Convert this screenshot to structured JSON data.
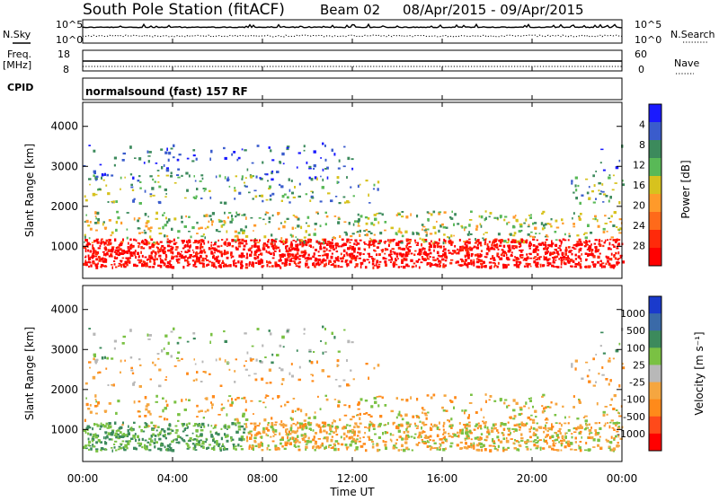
{
  "header": {
    "station": "South Pole Station (fitACF)",
    "beam": "Beam 02",
    "dates": "08/Apr/2015 - 09/Apr/2015"
  },
  "side_labels": {
    "nsky": "N.Sky",
    "nsearch": "N.Search",
    "freq": "Freq.",
    "mhz": "[MHz]",
    "nave": "Nave",
    "cpid": "CPID"
  },
  "cpid_text": "normalsound (fast) 157 RF",
  "chart_data": [
    {
      "type": "line",
      "name": "noise",
      "series": [
        {
          "name": "N.Sky",
          "style": "solid",
          "value_text": "10^5"
        },
        {
          "name": "N.Search",
          "style": "dotted"
        }
      ],
      "y_tick_labels_left": [
        "10^5",
        "10^0"
      ],
      "y_tick_labels_right": [
        "10^5",
        "10^0"
      ]
    },
    {
      "type": "line",
      "name": "frequency",
      "series": [
        {
          "name": "Freq.",
          "style": "solid"
        },
        {
          "name": "Nave",
          "style": "dotted"
        }
      ],
      "y_tick_labels_left": [
        "18",
        "8"
      ],
      "y_tick_labels_right": [
        "60",
        "0"
      ]
    },
    {
      "type": "heatmap",
      "name": "power",
      "ylabel": "Slant Range [km]",
      "y_ticks": [
        1000,
        2000,
        3000,
        4000
      ],
      "ylim": [
        200,
        4600
      ],
      "colorbar": {
        "label": "Power [dB]",
        "ticks": [
          "4",
          "8",
          "12",
          "16",
          "20",
          "24",
          "28"
        ],
        "colors": [
          "#1a1aff",
          "#3a5ccc",
          "#3c8a5c",
          "#59b957",
          "#d7c21e",
          "#ff9a2a",
          "#ff6a1a",
          "#ff2a0a",
          "#ff0000"
        ]
      }
    },
    {
      "type": "heatmap",
      "name": "velocity",
      "ylabel": "Slant Range [km]",
      "y_ticks": [
        1000,
        2000,
        3000,
        4000
      ],
      "ylim": [
        200,
        4600
      ],
      "colorbar": {
        "label": "Velocity [m s⁻¹]",
        "ticks": [
          "1000",
          "500",
          "100",
          "25",
          "-25",
          "-100",
          "-500",
          "-1000"
        ],
        "colors": [
          "#1a3acc",
          "#3a6aa8",
          "#3c8a5c",
          "#7ac143",
          "#b8b8b8",
          "#f5a640",
          "#ff8a1a",
          "#ff4a1a",
          "#ff0000"
        ]
      }
    }
  ],
  "x_axis": {
    "ticks": [
      "00:00",
      "04:00",
      "08:00",
      "12:00",
      "16:00",
      "20:00",
      "00:00"
    ],
    "xlabel": "Time UT"
  },
  "colors": {
    "bg": "#ffffff",
    "axis": "#000000"
  }
}
